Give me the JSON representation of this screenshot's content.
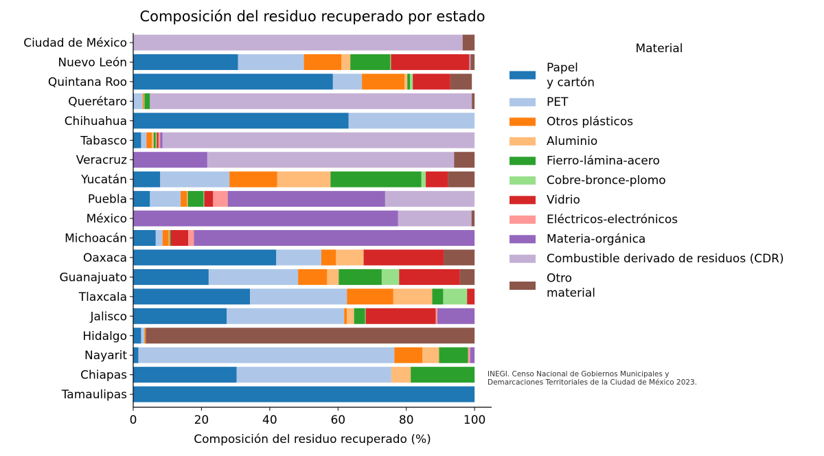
{
  "chart_data": {
    "type": "bar",
    "orientation": "horizontal",
    "stacked": true,
    "title": "Composición del residuo recuperado por estado",
    "xlabel": "Composición del residuo recuperado (%)",
    "ylabel": "",
    "xlim": [
      0,
      105
    ],
    "xticks": [
      0,
      20,
      40,
      60,
      80,
      100
    ],
    "grid": false,
    "legend": {
      "title": "Material",
      "placement": "right"
    },
    "categories": [
      "Ciudad de México",
      "Nuevo León",
      "Quintana Roo",
      "Querétaro",
      "Chihuahua",
      "Tabasco",
      "Veracruz",
      "Yucatán",
      "Puebla",
      "México",
      "Michoacán",
      "Oaxaca",
      "Guanajuato",
      "Tlaxcala",
      "Jalisco",
      "Hidalgo",
      "Nayarit",
      "Chiapas",
      "Tamaulipas"
    ],
    "series": [
      {
        "name": "Papel\ny cartón",
        "color": "#1f77b4",
        "values": [
          0,
          30.7,
          58.5,
          0.2,
          63.1,
          2.3,
          0,
          7.9,
          4.9,
          0,
          6.6,
          41.9,
          22.1,
          34.2,
          27.4,
          2.3,
          1.5,
          30.3,
          100
        ]
      },
      {
        "name": "PET",
        "color": "#aec7e8",
        "values": [
          0,
          19.3,
          8.5,
          2.6,
          36.9,
          1.6,
          0,
          20.3,
          9.0,
          0,
          2.0,
          13.2,
          26.2,
          28.4,
          34.4,
          1.0,
          75.0,
          45.3,
          0
        ]
      },
      {
        "name": "Otros plásticos",
        "color": "#ff7f0e",
        "values": [
          0,
          11.0,
          12.5,
          0.3,
          0,
          1.6,
          0,
          14.0,
          1.8,
          0,
          1.8,
          4.3,
          8.5,
          13.6,
          0.8,
          0.4,
          8.2,
          0,
          0
        ]
      },
      {
        "name": "Aluminio",
        "color": "#ffbb78",
        "values": [
          0,
          2.6,
          0.8,
          0.2,
          0,
          0.5,
          0,
          15.6,
          0.3,
          0,
          0.3,
          8.1,
          3.4,
          11.4,
          2.1,
          0,
          4.9,
          5.7,
          0
        ]
      },
      {
        "name": "Fierro-lámina-acero",
        "color": "#2ca02c",
        "values": [
          0,
          11.7,
          0.8,
          1.6,
          0,
          0.6,
          0,
          26.6,
          4.6,
          0,
          0.3,
          0,
          12.6,
          3.2,
          3.2,
          0,
          8.5,
          18.7,
          0
        ]
      },
      {
        "name": "Cobre-bronce-plomo",
        "color": "#98df8a",
        "values": [
          0,
          0.2,
          0.8,
          0,
          0,
          0.3,
          0,
          1.3,
          0.2,
          0,
          0,
          0,
          5.1,
          7.0,
          0.2,
          0,
          0,
          0,
          0
        ]
      },
      {
        "name": "Vidrio",
        "color": "#d62728",
        "values": [
          0,
          23.0,
          11.0,
          0,
          0,
          0.5,
          0,
          6.5,
          2.6,
          0,
          5.1,
          23.5,
          17.8,
          2.2,
          20.5,
          0,
          0,
          0,
          0
        ]
      },
      {
        "name": "Eléctricos-electrónicos",
        "color": "#ff9896",
        "values": [
          0,
          0,
          0,
          0,
          0,
          0.5,
          0,
          0,
          4.3,
          0,
          1.7,
          0,
          0,
          0,
          0.5,
          0,
          0.6,
          0,
          0
        ]
      },
      {
        "name": "Materia-orgánica",
        "color": "#9467bd",
        "values": [
          0,
          0,
          0,
          0,
          0,
          0.7,
          21.7,
          0,
          46.1,
          77.6,
          82.2,
          0,
          0,
          0,
          10.9,
          0,
          1.3,
          0,
          0
        ]
      },
      {
        "name": "Combustible derivado de residuos (CDR)",
        "color": "#c5b0d5",
        "values": [
          96.5,
          0.3,
          0,
          94.3,
          0,
          91.4,
          72.3,
          0,
          26.2,
          21.5,
          0,
          0,
          0,
          0,
          0,
          0,
          0,
          0,
          0
        ]
      },
      {
        "name": "Otro\nmaterial",
        "color": "#8c564b",
        "values": [
          3.5,
          1.2,
          6.3,
          0.8,
          0,
          0,
          6.0,
          7.8,
          0,
          0.9,
          0,
          9.0,
          4.3,
          0,
          0,
          96.3,
          0,
          0,
          0
        ]
      }
    ],
    "source_note": "INEGI. Censo Nacional de Gobiernos Municipales y\nDemarcaciones Territoriales de la Ciudad de México 2023."
  }
}
